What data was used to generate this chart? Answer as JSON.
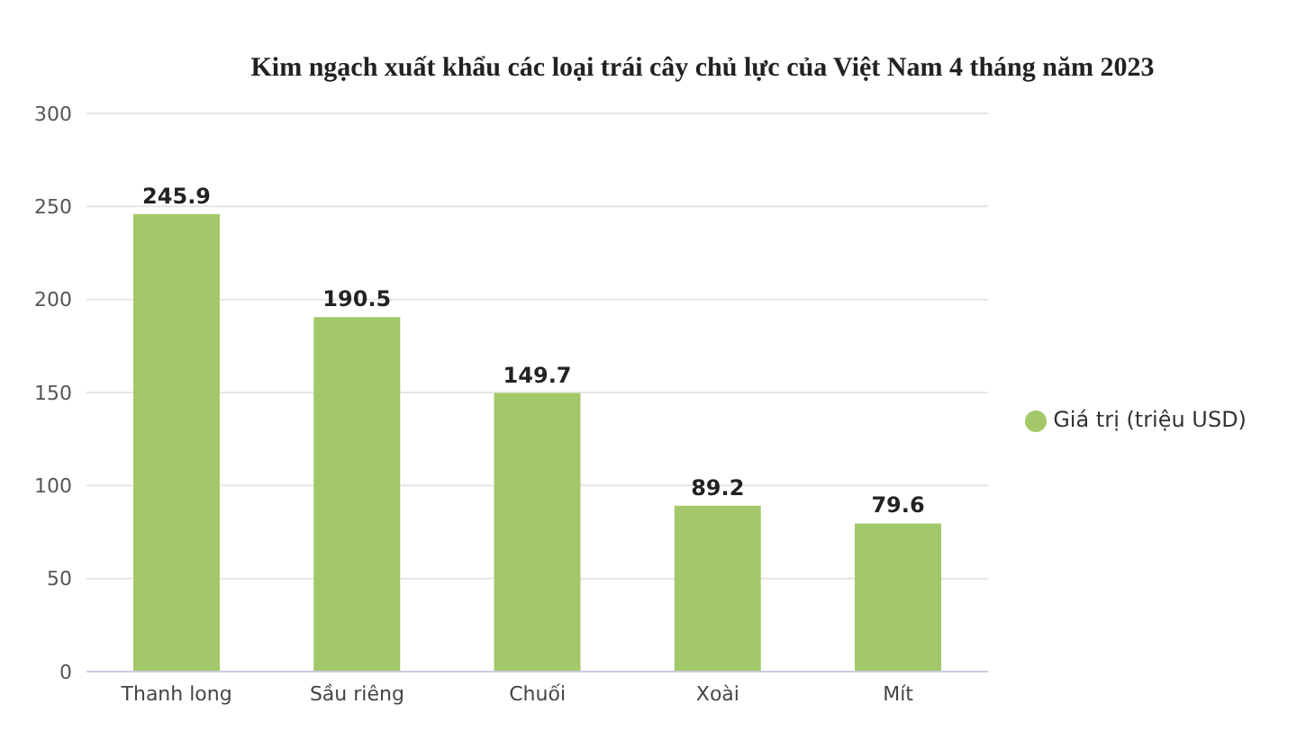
{
  "chart_data": {
    "type": "bar",
    "title": "Kim ngạch xuất khẩu các loại trái cây chủ lực của Việt Nam 4 tháng năm 2023",
    "categories": [
      "Thanh long",
      "Sầu riêng",
      "Chuối",
      "Xoài",
      "Mít"
    ],
    "series": [
      {
        "name": "Giá trị (triệu USD)",
        "color": "#a3c86a",
        "values": [
          245.9,
          190.5,
          149.7,
          89.2,
          79.6
        ]
      }
    ],
    "ylim": [
      0,
      300
    ],
    "yticks": [
      0,
      50,
      100,
      150,
      200,
      250,
      300
    ],
    "grid": "y",
    "legend": "right",
    "data_labels": true
  }
}
